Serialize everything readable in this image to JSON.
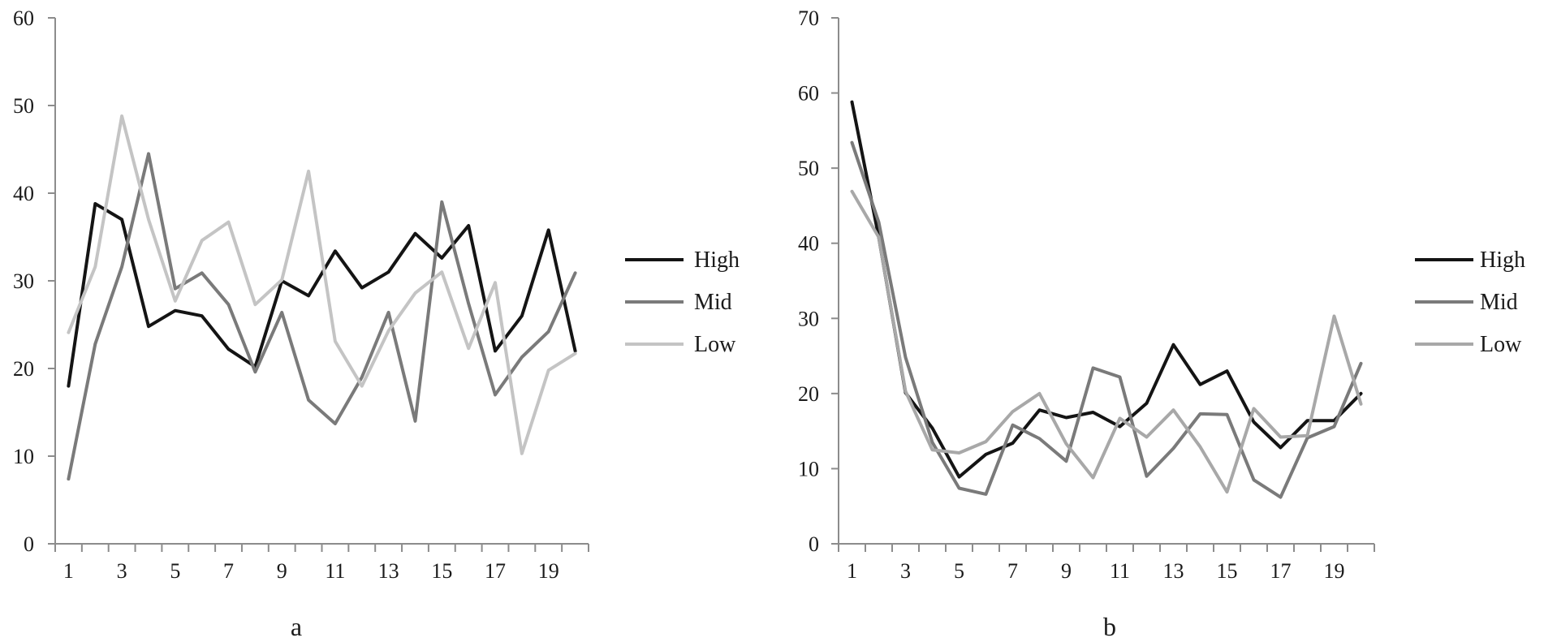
{
  "chart_data": [
    {
      "type": "line",
      "panel_label": "a",
      "ylim": [
        0,
        60
      ],
      "yticks": [
        0,
        10,
        20,
        30,
        40,
        50,
        60
      ],
      "x": [
        1,
        2,
        3,
        4,
        5,
        6,
        7,
        8,
        9,
        10,
        11,
        12,
        13,
        14,
        15,
        16,
        17,
        18,
        19,
        20
      ],
      "xtick_labels": [
        "1",
        "3",
        "5",
        "7",
        "9",
        "11",
        "13",
        "15",
        "17",
        "19"
      ],
      "legend_position": "right",
      "grid": false,
      "series": [
        {
          "name": "High",
          "color": "#141414",
          "values": [
            18,
            38.8,
            37,
            24.8,
            26.6,
            26,
            22.2,
            20.2,
            30,
            28.3,
            33.4,
            29.2,
            31,
            35.4,
            32.6,
            36.3,
            22,
            26,
            35.8,
            22
          ]
        },
        {
          "name": "Mid",
          "color": "#7a7a7a",
          "values": [
            7.4,
            22.8,
            31.6,
            44.5,
            29.1,
            30.9,
            27.3,
            19.6,
            26.4,
            16.4,
            13.7,
            19,
            26.4,
            14,
            39,
            27.4,
            17,
            21.3,
            24.2,
            30.9
          ]
        },
        {
          "name": "Low",
          "color": "#c4c4c4",
          "values": [
            24.1,
            31.6,
            48.8,
            37,
            27.7,
            34.6,
            36.7,
            27.3,
            30.1,
            42.5,
            23.1,
            18,
            24.3,
            28.6,
            31,
            22.3,
            29.8,
            10.3,
            19.8,
            21.7
          ]
        }
      ]
    },
    {
      "type": "line",
      "panel_label": "b",
      "ylim": [
        0,
        70
      ],
      "yticks": [
        0,
        10,
        20,
        30,
        40,
        50,
        60,
        70
      ],
      "x": [
        1,
        2,
        3,
        4,
        5,
        6,
        7,
        8,
        9,
        10,
        11,
        12,
        13,
        14,
        15,
        16,
        17,
        18,
        19,
        20
      ],
      "xtick_labels": [
        "1",
        "3",
        "5",
        "7",
        "9",
        "11",
        "13",
        "15",
        "17",
        "19"
      ],
      "legend_position": "right",
      "grid": false,
      "series": [
        {
          "name": "High",
          "color": "#141414",
          "values": [
            58.8,
            40.8,
            20.1,
            15.4,
            8.9,
            11.9,
            13.4,
            17.8,
            16.8,
            17.5,
            15.6,
            18.7,
            26.5,
            21.2,
            23,
            16.2,
            12.8,
            16.4,
            16.4,
            20
          ]
        },
        {
          "name": "Mid",
          "color": "#7a7a7a",
          "values": [
            53.4,
            42.8,
            24.8,
            13.5,
            7.4,
            6.6,
            15.8,
            14,
            11,
            23.4,
            22.2,
            9,
            12.7,
            17.3,
            17.2,
            8.5,
            6.2,
            14.1,
            15.6,
            24
          ]
        },
        {
          "name": "Low",
          "color": "#a8a8a8",
          "values": [
            46.9,
            40.8,
            20.3,
            12.5,
            12.1,
            13.6,
            17.6,
            20,
            13.3,
            8.8,
            16.7,
            14.2,
            17.8,
            12.9,
            6.9,
            18,
            14.2,
            14.4,
            30.3,
            18.6
          ]
        }
      ]
    }
  ]
}
